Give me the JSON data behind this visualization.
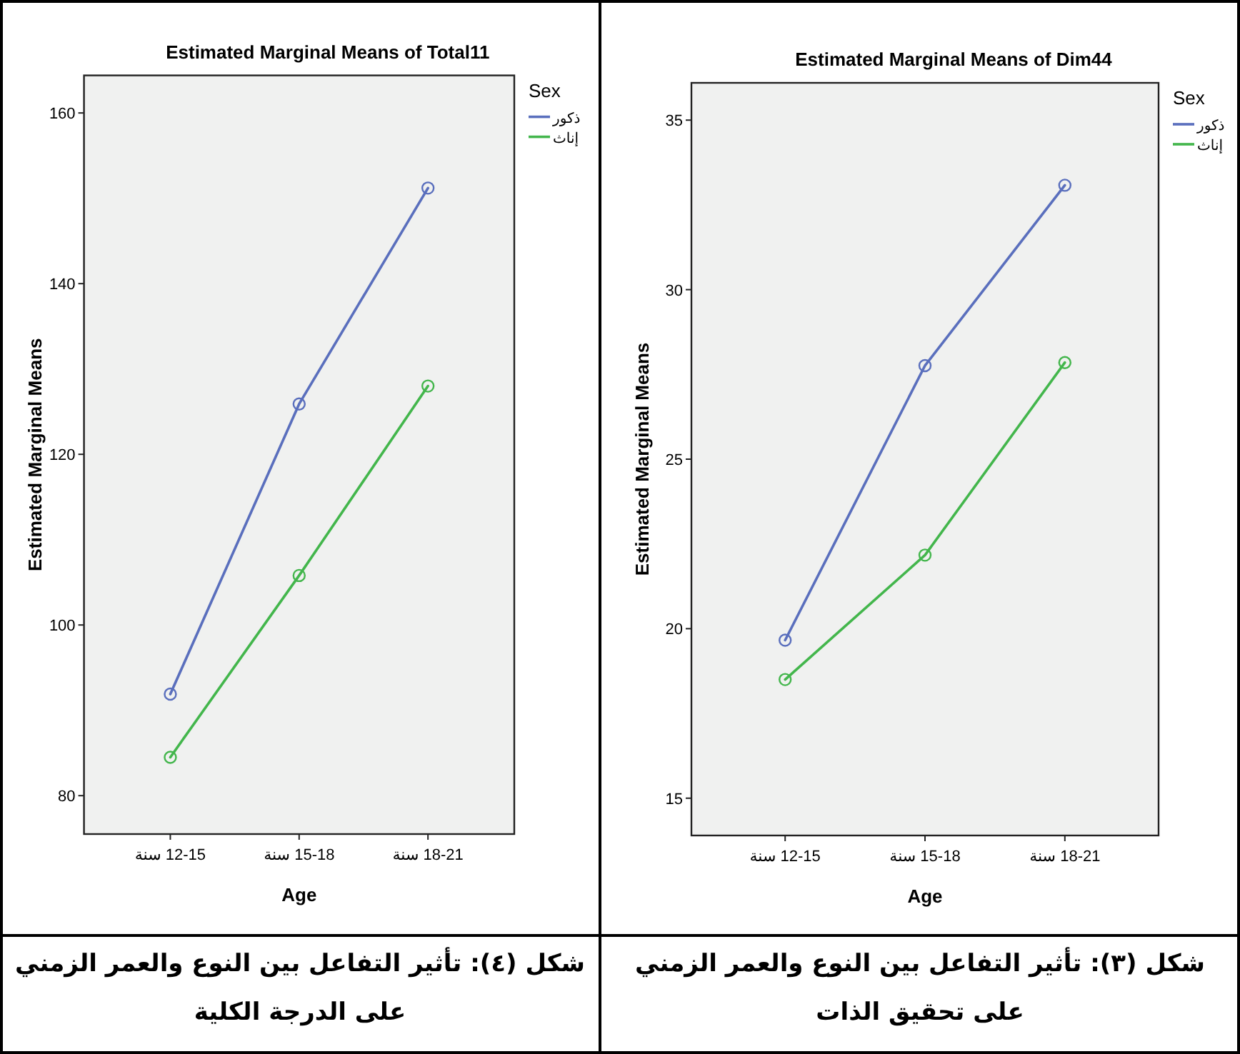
{
  "chart_data": [
    {
      "type": "line",
      "title": "Estimated Marginal Means of Total11",
      "xlabel": "Age",
      "ylabel": "Estimated Marginal Means",
      "legend_title": "Sex",
      "legend": "top right",
      "marker": "circle",
      "categories": [
        "12-15 سنة",
        "15-18 سنة",
        "18-21 سنة"
      ],
      "series": [
        {
          "name": "ذكور",
          "color": "#5a6fbd",
          "values": [
            91.9,
            125.9,
            151.2
          ]
        },
        {
          "name": "إناث",
          "color": "#43b64c",
          "values": [
            84.5,
            105.8,
            128.0
          ]
        }
      ],
      "ylim": [
        75.5,
        164.4
      ],
      "yticks": [
        80,
        100,
        120,
        140,
        160
      ],
      "annotations": [
        "شكل (٤): تأثير التفاعل بين النوع والعمر الزمني على الدرجة الكلية"
      ]
    },
    {
      "type": "line",
      "title": "Estimated Marginal Means of Dim44",
      "xlabel": "Age",
      "ylabel": "Estimated Marginal Means",
      "legend_title": "Sex",
      "legend": "top right",
      "marker": "circle",
      "categories": [
        "12-15 سنة",
        "15-18 سنة",
        "18-21 سنة"
      ],
      "series": [
        {
          "name": "ذكور",
          "color": "#5a6fbd",
          "values": [
            19.66,
            27.76,
            33.08
          ]
        },
        {
          "name": "إناث",
          "color": "#43b64c",
          "values": [
            18.5,
            22.17,
            27.85
          ]
        }
      ],
      "ylim": [
        13.9,
        36.1
      ],
      "yticks": [
        15,
        20,
        25,
        30,
        35
      ],
      "annotations": [
        "شكل (٣): تأثير التفاعل بين النوع والعمر الزمني على تحقيق الذات"
      ]
    }
  ]
}
